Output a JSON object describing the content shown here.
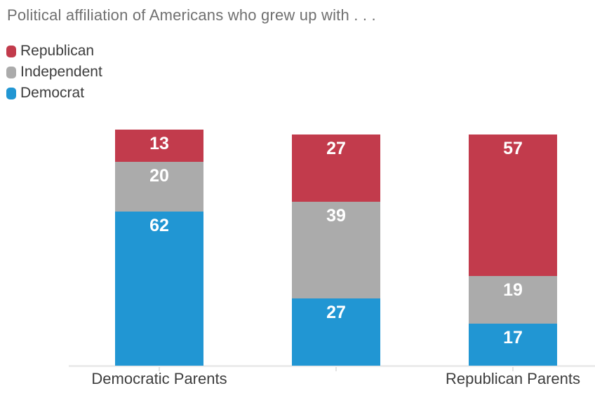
{
  "title": "Political affiliation of Americans who grew up with . . .",
  "legend": [
    {
      "label": "Republican",
      "color": "#c23b4c"
    },
    {
      "label": "Independent",
      "color": "#ababab"
    },
    {
      "label": "Democrat",
      "color": "#2196d3"
    }
  ],
  "colors": {
    "republican": "#c23b4c",
    "independent": "#ababab",
    "democrat": "#2196d3",
    "axis_line": "#ebebeb",
    "title_text": "#707070",
    "label_text": "#3d3d3d",
    "value_label_text": "#ffffff"
  },
  "chart_data": {
    "type": "bar",
    "stacked": true,
    "title": "Political affiliation of Americans who grew up with . . .",
    "categories": [
      "Democratic Parents",
      "",
      "Republican Parents"
    ],
    "series": [
      {
        "name": "Republican",
        "color": "#c23b4c",
        "values": [
          13,
          27,
          57
        ]
      },
      {
        "name": "Independent",
        "color": "#ababab",
        "values": [
          20,
          39,
          19
        ]
      },
      {
        "name": "Democrat",
        "color": "#2196d3",
        "values": [
          62,
          27,
          17
        ]
      }
    ],
    "stack_order_top_to_bottom": [
      "Republican",
      "Independent",
      "Democrat"
    ],
    "value_labels": "inside-top",
    "legend_position": "top-left",
    "xlabel": "",
    "ylabel": "",
    "y_axis_shown": false,
    "grid": false
  }
}
